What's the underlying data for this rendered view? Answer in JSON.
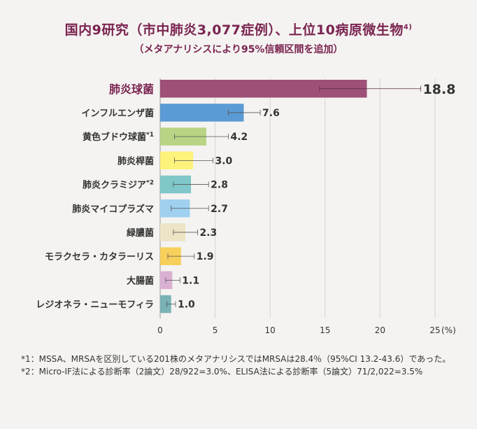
{
  "title": "国内9研究（市中肺炎3,077症例）、上位10病原微生物",
  "title_ref": "4)",
  "subtitle": "（メタアナリシスにより95%信頼区間を追加）",
  "footnotes": [
    "*1：MSSA、MRSAを区別している201株のメタアナリシスではMRSAは28.4％（95%CI 13.2-43.6）であった。",
    "*2：Micro-IF法による診断率（2論文）28/922=3.0%、ELISA法による診断率（5論文）71/2,022=3.5%"
  ],
  "chart_data": {
    "type": "bar",
    "orientation": "horizontal",
    "title": "国内9研究（市中肺炎3,077症例）、上位10病原微生物",
    "xlabel": "(%)",
    "xlim": [
      0,
      25
    ],
    "xticks": [
      0,
      5,
      10,
      15,
      20,
      25
    ],
    "grid": true,
    "categories": [
      "肺炎球菌",
      "インフルエンザ菌",
      "黄色ブドウ球菌",
      "肺炎桿菌",
      "肺炎クラミジア",
      "肺炎マイコプラズマ",
      "緑膿菌",
      "モラクセラ・カタラーリス",
      "大腸菌",
      "レジオネラ・ニューモフィラ"
    ],
    "category_notes": [
      "",
      "",
      "*1",
      "",
      "*2",
      "",
      "",
      "",
      "",
      ""
    ],
    "values": [
      18.8,
      7.6,
      4.2,
      3.0,
      2.8,
      2.7,
      2.3,
      1.9,
      1.1,
      1.0
    ],
    "value_labels": [
      "18.8",
      "7.6",
      "4.2",
      "3.0",
      "2.8",
      "2.7",
      "2.3",
      "1.9",
      "1.1",
      "1.0"
    ],
    "ci_lower": [
      14.5,
      6.2,
      1.3,
      1.3,
      1.2,
      1.0,
      1.2,
      0.7,
      0.5,
      0.6
    ],
    "ci_upper": [
      23.7,
      9.1,
      6.2,
      4.8,
      4.4,
      4.4,
      3.4,
      3.1,
      1.8,
      1.4
    ],
    "colors": [
      "#9e5077",
      "#5b9bd5",
      "#b8d484",
      "#fdf27c",
      "#7fc7c9",
      "#9fd0ef",
      "#ece4c4",
      "#f7cf5b",
      "#dab0d2",
      "#79b3b5"
    ]
  }
}
